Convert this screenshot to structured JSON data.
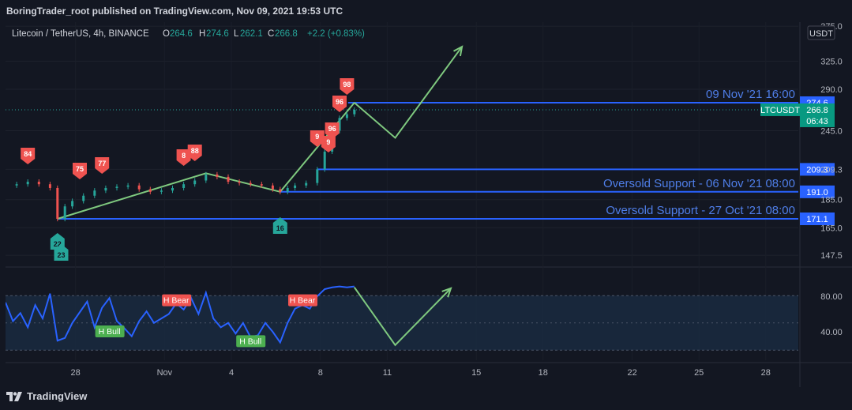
{
  "header": {
    "published": "BoringTrader_root published on TradingView.com, Nov 09, 2021 19:53 UTC"
  },
  "legend": {
    "symbol": "Litecoin / TetherUS, 4h, BINANCE",
    "o_label": "O",
    "o_value": "264.6",
    "h_label": "H",
    "h_value": "274.6",
    "l_label": "L",
    "l_value": "262.1",
    "c_label": "C",
    "c_value": "266.8",
    "change": "+2.2 (+0.83%)"
  },
  "currency_button": "USDT",
  "footer": {
    "brand": "TradingView"
  },
  "colors": {
    "background": "#131722",
    "up": "#26a69a",
    "down": "#ef5350",
    "level_line": "#2962ff",
    "projection": "#7fc97f",
    "rsi": "#2962ff",
    "price_label": "#2962ff",
    "symbol_label": "#089981"
  },
  "chart_data": [
    {
      "type": "candlestick",
      "name": "price-pane",
      "x_axis": {
        "type": "date",
        "tick_labels": [
          "28",
          "Nov",
          "4",
          "8",
          "11",
          "15",
          "18",
          "22",
          "25",
          "28"
        ]
      },
      "y_axis": {
        "scale": "log",
        "ticks": [
          147.5,
          165.0,
          185.0,
          209.3,
          245.0,
          290.0,
          325.0,
          375.0
        ],
        "tick_labels": [
          "147.5",
          "165.0",
          "185.0",
          "209.3",
          "245.0",
          "290.0",
          "325.0",
          "375.0"
        ]
      },
      "close_series": [
        [
          "2021-10-25",
          196
        ],
        [
          "2021-10-25 12:00",
          197
        ],
        [
          "2021-10-26",
          199
        ],
        [
          "2021-10-26 12:00",
          197
        ],
        [
          "2021-10-27",
          194
        ],
        [
          "2021-10-27 08:00",
          171.1
        ],
        [
          "2021-10-27 16:00",
          180
        ],
        [
          "2021-10-28",
          184
        ],
        [
          "2021-10-28 12:00",
          188
        ],
        [
          "2021-10-29",
          192
        ],
        [
          "2021-10-29 12:00",
          194
        ],
        [
          "2021-10-30",
          195
        ],
        [
          "2021-10-30 12:00",
          196
        ],
        [
          "2021-10-31",
          193
        ],
        [
          "2021-10-31 12:00",
          191
        ],
        [
          "2021-11-01",
          192
        ],
        [
          "2021-11-01 12:00",
          194
        ],
        [
          "2021-11-02",
          197
        ],
        [
          "2021-11-02 12:00",
          200
        ],
        [
          "2021-11-03",
          205
        ],
        [
          "2021-11-03 12:00",
          203
        ],
        [
          "2021-11-04",
          199
        ],
        [
          "2021-11-04 12:00",
          198
        ],
        [
          "2021-11-05",
          197
        ],
        [
          "2021-11-05 12:00",
          196
        ],
        [
          "2021-11-06",
          193
        ],
        [
          "2021-11-06 08:00",
          191
        ],
        [
          "2021-11-06 16:00",
          194
        ],
        [
          "2021-11-07",
          196
        ],
        [
          "2021-11-07 12:00",
          198
        ],
        [
          "2021-11-08",
          209.3
        ],
        [
          "2021-11-08 08:00",
          225
        ],
        [
          "2021-11-08 16:00",
          245
        ],
        [
          "2021-11-09",
          258
        ],
        [
          "2021-11-09 08:00",
          262
        ],
        [
          "2021-11-09 16:00",
          266.8
        ]
      ],
      "horizontal_levels": [
        {
          "value": 274.6,
          "label": "09 Nov '21 16:00",
          "axis_label": "274.6"
        },
        {
          "value": 209.3,
          "label": "",
          "axis_label": "209.3"
        },
        {
          "value": 191.0,
          "label": "Oversold Support - 06 Nov '21 08:00",
          "axis_label": "191.0"
        },
        {
          "value": 171.1,
          "label": "Oversold Support - 27 Oct '21 08:00",
          "axis_label": "171.1"
        }
      ],
      "current_price": {
        "symbol": "LTCUSDT",
        "value": "266.8",
        "countdown": "06:43"
      },
      "trend_lines": [
        {
          "from": [
            "2021-10-27 08:00",
            171.1
          ],
          "to": [
            "2021-11-03",
            206
          ]
        },
        {
          "from": [
            "2021-11-03",
            206
          ],
          "to": [
            "2021-11-06 08:00",
            191.0
          ]
        },
        {
          "from": [
            "2021-11-06 08:00",
            191.0
          ],
          "to": [
            "2021-11-09 16:00",
            274.6
          ]
        }
      ],
      "projection": [
        [
          "2021-11-09 16:00",
          274.6
        ],
        [
          "2021-11-11 12:00",
          238
        ],
        [
          "2021-11-14 12:00",
          345
        ]
      ],
      "sell_markers": [
        {
          "date": "2021-10-26",
          "value": "84"
        },
        {
          "date": "2021-10-28 08:00",
          "value": "75"
        },
        {
          "date": "2021-10-29 08:00",
          "value": "77"
        },
        {
          "date": "2021-11-02",
          "value": "8"
        },
        {
          "date": "2021-11-02 12:00",
          "value": "88"
        },
        {
          "date": "2021-11-08",
          "value": "9"
        },
        {
          "date": "2021-11-08 12:00",
          "value": "9"
        },
        {
          "date": "2021-11-08 16:00",
          "value": "96"
        },
        {
          "date": "2021-11-09",
          "value": "96"
        },
        {
          "date": "2021-11-09 08:00",
          "value": "98"
        }
      ],
      "buy_markers": [
        {
          "date": "2021-10-27 08:00",
          "value": "22"
        },
        {
          "date": "2021-10-27 12:00",
          "value": "23"
        },
        {
          "date": "2021-11-06 08:00",
          "value": "16"
        }
      ]
    },
    {
      "type": "line",
      "name": "rsi-pane",
      "y_axis": {
        "ticks": [
          40.0,
          80.0
        ],
        "tick_labels": [
          "40.00",
          "80.00"
        ]
      },
      "band": [
        30,
        70
      ],
      "midline": 50,
      "series": [
        [
          "2021-10-25",
          73
        ],
        [
          "2021-10-25 08:00",
          52
        ],
        [
          "2021-10-25 16:00",
          61
        ],
        [
          "2021-10-26",
          45
        ],
        [
          "2021-10-26 08:00",
          70
        ],
        [
          "2021-10-26 16:00",
          55
        ],
        [
          "2021-10-27",
          83
        ],
        [
          "2021-10-27 08:00",
          30
        ],
        [
          "2021-10-27 16:00",
          33
        ],
        [
          "2021-10-28",
          50
        ],
        [
          "2021-10-28 08:00",
          62
        ],
        [
          "2021-10-28 16:00",
          74
        ],
        [
          "2021-10-29",
          45
        ],
        [
          "2021-10-29 08:00",
          67
        ],
        [
          "2021-10-29 16:00",
          78
        ],
        [
          "2021-10-30",
          52
        ],
        [
          "2021-10-30 08:00",
          44
        ],
        [
          "2021-10-30 16:00",
          35
        ],
        [
          "2021-10-31",
          52
        ],
        [
          "2021-10-31 08:00",
          63
        ],
        [
          "2021-10-31 16:00",
          50
        ],
        [
          "2021-11-01",
          55
        ],
        [
          "2021-11-01 08:00",
          60
        ],
        [
          "2021-11-01 16:00",
          72
        ],
        [
          "2021-11-02",
          65
        ],
        [
          "2021-11-02 08:00",
          78
        ],
        [
          "2021-11-02 16:00",
          60
        ],
        [
          "2021-11-03",
          84
        ],
        [
          "2021-11-03 08:00",
          55
        ],
        [
          "2021-11-03 16:00",
          45
        ],
        [
          "2021-11-04",
          50
        ],
        [
          "2021-11-04 08:00",
          38
        ],
        [
          "2021-11-04 16:00",
          50
        ],
        [
          "2021-11-05",
          34
        ],
        [
          "2021-11-05 08:00",
          36
        ],
        [
          "2021-11-05 16:00",
          50
        ],
        [
          "2021-11-06",
          40
        ],
        [
          "2021-11-06 08:00",
          28
        ],
        [
          "2021-11-06 16:00",
          50
        ],
        [
          "2021-11-07",
          66
        ],
        [
          "2021-11-07 08:00",
          70
        ],
        [
          "2021-11-07 16:00",
          66
        ],
        [
          "2021-11-08",
          80
        ],
        [
          "2021-11-08 08:00",
          88
        ],
        [
          "2021-11-08 16:00",
          90
        ],
        [
          "2021-11-09",
          91
        ],
        [
          "2021-11-09 08:00",
          90
        ],
        [
          "2021-11-09 16:00",
          91
        ]
      ],
      "projection": [
        [
          "2021-11-09 16:00",
          90
        ],
        [
          "2021-11-11 12:00",
          25
        ],
        [
          "2021-11-14",
          89
        ]
      ],
      "divergence_labels": [
        {
          "date": "2021-10-29 16:00",
          "value": 40,
          "text": "H Bull",
          "kind": "bull"
        },
        {
          "date": "2021-11-01 16:00",
          "value": 75,
          "text": "H Bear",
          "kind": "bear"
        },
        {
          "date": "2021-11-05",
          "value": 29,
          "text": "H Bull",
          "kind": "bull"
        },
        {
          "date": "2021-11-07 08:00",
          "value": 75,
          "text": "H Bear",
          "kind": "bear"
        }
      ]
    }
  ]
}
